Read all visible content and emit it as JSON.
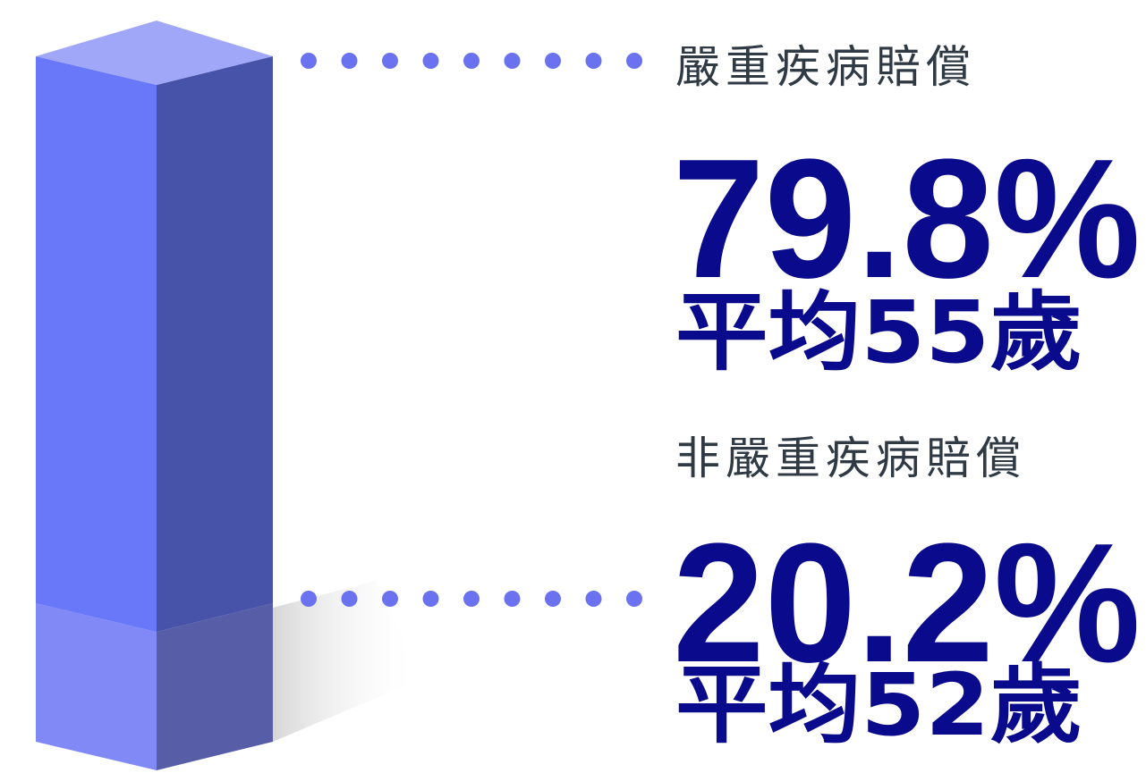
{
  "chart_data": {
    "type": "bar3d",
    "ylim": [
      0,
      100
    ],
    "series": [
      {
        "name": "非嚴重疾病賠償",
        "values": [
          20.2
        ],
        "value_labels": [
          "20.2%"
        ],
        "subtitle": "平均52歲",
        "color": "#8089f5"
      },
      {
        "name": "嚴重疾病賠償",
        "values": [
          79.8
        ],
        "value_labels": [
          "79.8%"
        ],
        "subtitle": "平均55歲",
        "color": "#6878f8"
      }
    ]
  }
}
